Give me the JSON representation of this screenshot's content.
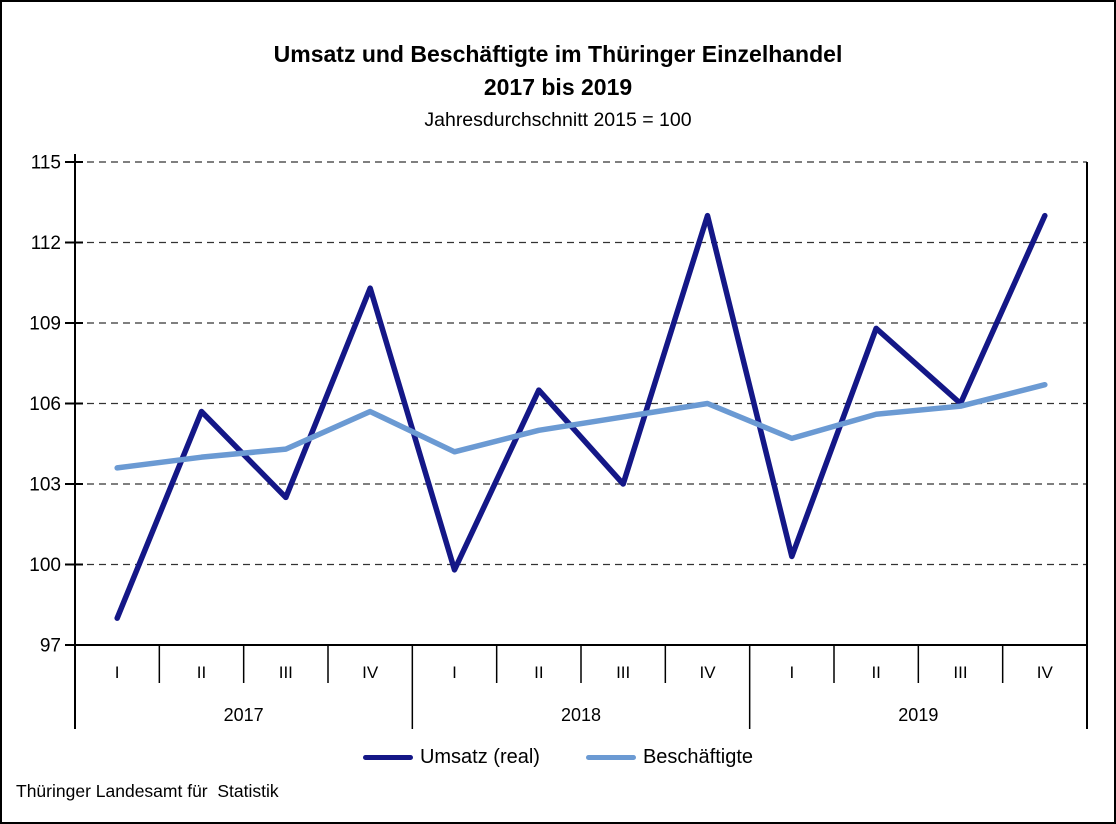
{
  "header": {
    "title_line1": "Umsatz und Beschäftigte im Thüringer Einzelhandel",
    "title_line2": "2017 bis 2019",
    "subtitle": "Jahresdurchschnitt 2015 = 100"
  },
  "chart_data": {
    "type": "line",
    "categories": [
      "2017-I",
      "2017-II",
      "2017-III",
      "2017-IV",
      "2018-I",
      "2018-II",
      "2018-III",
      "2018-IV",
      "2019-I",
      "2019-II",
      "2019-III",
      "2019-IV"
    ],
    "x_groups": [
      {
        "year": "2017",
        "quarters": [
          "I",
          "II",
          "III",
          "IV"
        ]
      },
      {
        "year": "2018",
        "quarters": [
          "I",
          "II",
          "III",
          "IV"
        ]
      },
      {
        "year": "2019",
        "quarters": [
          "I",
          "II",
          "III",
          "IV"
        ]
      }
    ],
    "series": [
      {
        "name": "Umsatz (real)",
        "color": "#141787",
        "values": [
          98.0,
          105.7,
          102.5,
          110.3,
          99.8,
          106.5,
          103.0,
          113.0,
          100.3,
          108.8,
          106.0,
          113.0
        ]
      },
      {
        "name": "Beschäftigte",
        "color": "#6b9ad3",
        "values": [
          103.6,
          104.0,
          104.3,
          105.7,
          104.2,
          105.0,
          105.5,
          106.0,
          104.7,
          105.6,
          105.9,
          106.7
        ]
      }
    ],
    "ylim": [
      97,
      115
    ],
    "yticks": [
      115,
      112,
      109,
      106,
      103,
      100,
      97
    ],
    "grid": "dashed horizontal gridlines at each y tick above 97",
    "legend_position": "bottom center"
  },
  "footer": {
    "source": "Thüringer Landesamt für  Statistik"
  }
}
